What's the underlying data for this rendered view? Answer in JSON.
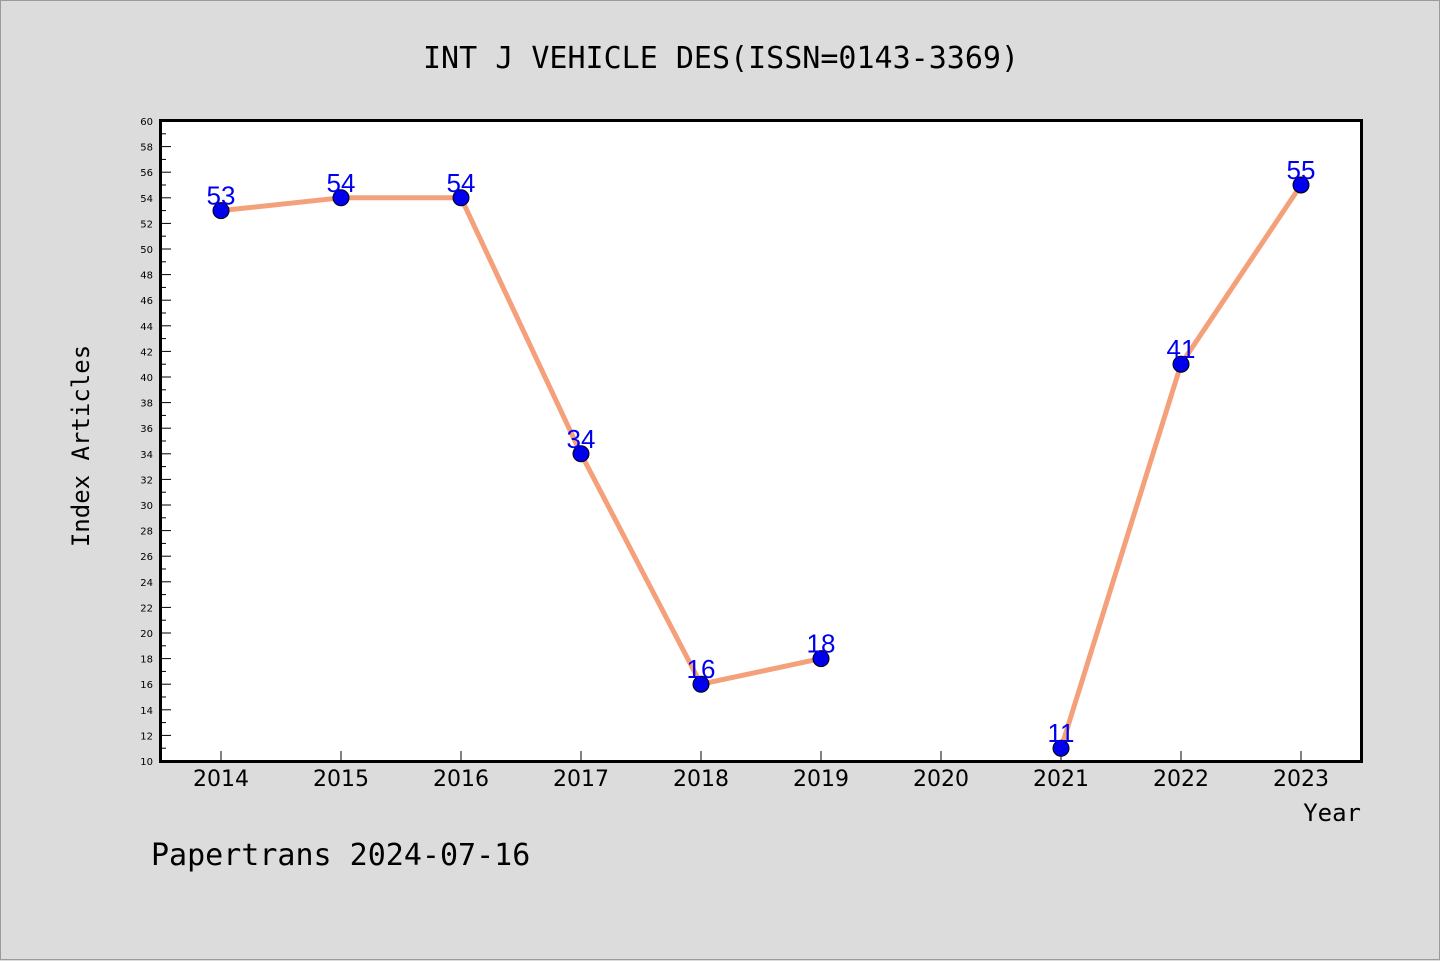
{
  "chart_data": {
    "type": "line",
    "title": "INT J VEHICLE DES(ISSN=0143-3369)",
    "xlabel": "Year",
    "ylabel": "Index Articles",
    "categories": [
      "2014",
      "2015",
      "2016",
      "2017",
      "2018",
      "2019",
      "2020",
      "2021",
      "2022",
      "2023"
    ],
    "series": [
      {
        "values": [
          53,
          54,
          54,
          34,
          16,
          18,
          null,
          11,
          41,
          55
        ]
      }
    ],
    "ylim": [
      10,
      60
    ],
    "yticks": [
      10,
      12,
      14,
      16,
      18,
      20,
      22,
      24,
      26,
      28,
      30,
      32,
      34,
      36,
      38,
      40,
      42,
      44,
      46,
      48,
      50,
      52,
      54,
      56,
      58,
      60
    ],
    "data_labels": [
      "53",
      "54",
      "54",
      "34",
      "16",
      "18",
      "",
      "11",
      "41",
      "55"
    ],
    "line_color": "#f4a07a",
    "marker_color": "#0000ee",
    "label_color": "#0000ee",
    "background": "#dcdcdc",
    "grid": false,
    "legend": "none"
  },
  "footer": "Papertrans 2024-07-16"
}
